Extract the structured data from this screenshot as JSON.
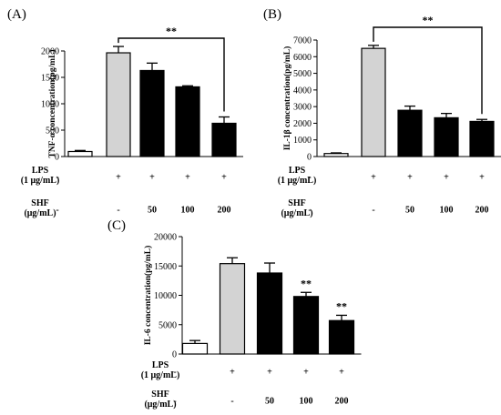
{
  "chart_data": [
    {
      "panel_label": "(A)",
      "type": "bar",
      "ylabel": "TNF-α concentration(pg/mL)",
      "ylim": [
        0,
        2000
      ],
      "yticks": [
        "0",
        "500",
        "1000",
        "1500",
        "2000"
      ],
      "values": [
        95,
        1965,
        1630,
        1320,
        630
      ],
      "errors": [
        20,
        120,
        140,
        20,
        120
      ],
      "bar_colors": [
        "#ffffff",
        "#d3d3d3",
        "#000000",
        "#000000",
        "#000000"
      ],
      "significance": [
        {
          "text": "**",
          "style": "bracket",
          "from": 1,
          "to": 4
        }
      ],
      "lps": {
        "label": "LPS",
        "unit": "(1 μg/mL)",
        "values": [
          "-",
          "+",
          "+",
          "+",
          "+"
        ]
      },
      "shf": {
        "label": "SHF",
        "unit": "(μg/mL)",
        "values": [
          "-",
          "-",
          "50",
          "100",
          "200"
        ]
      }
    },
    {
      "panel_label": "(B)",
      "type": "bar",
      "ylabel": "IL-1β concentration(pg/mL)",
      "ylim": [
        0,
        7000
      ],
      "yticks": [
        "0",
        "1000",
        "2000",
        "3000",
        "4000",
        "5000",
        "6000",
        "7000"
      ],
      "values": [
        180,
        6500,
        2780,
        2330,
        2110
      ],
      "errors": [
        40,
        180,
        250,
        260,
        120
      ],
      "bar_colors": [
        "#ffffff",
        "#d3d3d3",
        "#000000",
        "#000000",
        "#000000"
      ],
      "significance": [
        {
          "text": "**",
          "style": "bracket",
          "from": 1,
          "to": 4
        }
      ],
      "lps": {
        "label": "LPS",
        "unit": "(1 μg/mL)",
        "values": [
          "-",
          "+",
          "+",
          "+",
          "+"
        ]
      },
      "shf": {
        "label": "SHF",
        "unit": "(μg/mL)",
        "values": [
          "-",
          "-",
          "50",
          "100",
          "200"
        ]
      }
    },
    {
      "panel_label": "(C)",
      "type": "bar",
      "ylabel": "IL-6 concentration(pg/mL)",
      "ylim": [
        0,
        20000
      ],
      "yticks": [
        "0",
        "5000",
        "10000",
        "15000",
        "20000"
      ],
      "values": [
        1800,
        15400,
        13800,
        9800,
        5700
      ],
      "errors": [
        500,
        1000,
        1700,
        700,
        900
      ],
      "bar_colors": [
        "#ffffff",
        "#d3d3d3",
        "#000000",
        "#000000",
        "#000000"
      ],
      "significance": [
        {
          "text": "**",
          "style": "above",
          "bars": [
            3,
            4
          ]
        }
      ],
      "lps": {
        "label": "LPS",
        "unit": "(1 μg/mL)",
        "values": [
          "-",
          "+",
          "+",
          "+",
          "+"
        ]
      },
      "shf": {
        "label": "SHF",
        "unit": "(μg/mL)",
        "values": [
          "-",
          "-",
          "50",
          "100",
          "200"
        ]
      }
    }
  ]
}
